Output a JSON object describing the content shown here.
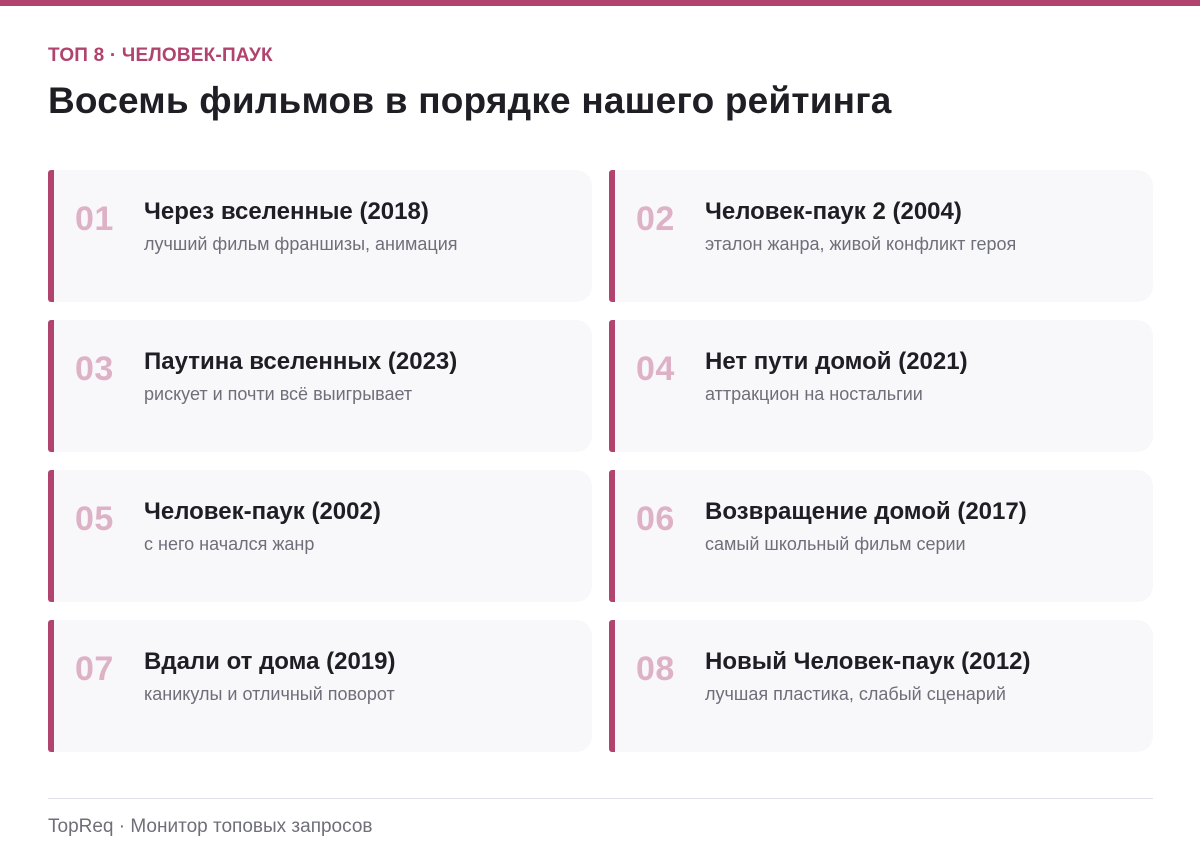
{
  "header": {
    "kicker": "ТОП 8 · ЧЕЛОВЕК-ПАУК",
    "title": "Восемь фильмов в порядке нашего рейтинга"
  },
  "items": [
    {
      "rank": "01",
      "title": "Через вселенные (2018)",
      "subtitle": "лучший фильм франшизы, анимация"
    },
    {
      "rank": "02",
      "title": "Человек-паук 2 (2004)",
      "subtitle": "эталон жанра, живой конфликт героя"
    },
    {
      "rank": "03",
      "title": "Паутина вселенных (2023)",
      "subtitle": "рискует и почти всё выигрывает"
    },
    {
      "rank": "04",
      "title": "Нет пути домой (2021)",
      "subtitle": "аттракцион на ностальгии"
    },
    {
      "rank": "05",
      "title": "Человек-паук (2002)",
      "subtitle": "с него начался жанр"
    },
    {
      "rank": "06",
      "title": "Возвращение домой (2017)",
      "subtitle": "самый школьный фильм серии"
    },
    {
      "rank": "07",
      "title": "Вдали от дома (2019)",
      "subtitle": "каникулы и отличный поворот"
    },
    {
      "rank": "08",
      "title": "Новый Человек-паук (2012)",
      "subtitle": "лучшая пластика, слабый сценарий"
    }
  ],
  "footer": {
    "text": "TopReq · Монитор топовых запросов"
  },
  "colors": {
    "accent": "#b0446f",
    "rank": "#deb2c6",
    "card_bg": "#f8f7fa"
  }
}
